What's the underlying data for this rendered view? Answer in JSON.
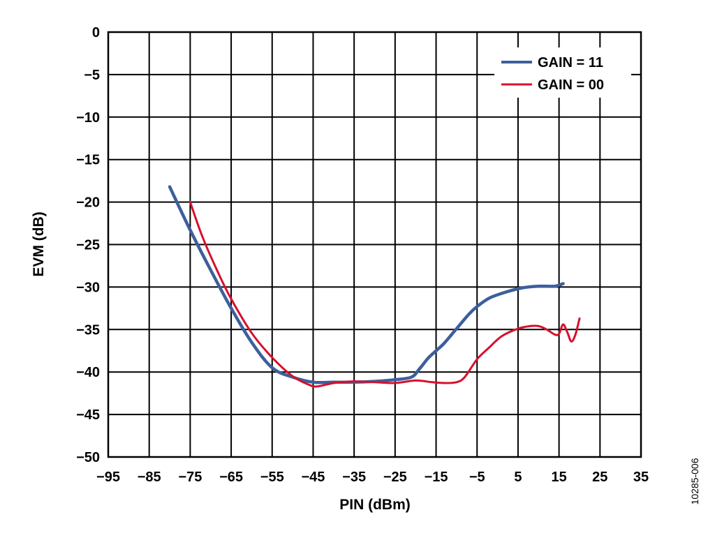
{
  "figure_id": "10285-006",
  "colors": {
    "gain11": "#3d5f9b",
    "gain00": "#d6102c",
    "grid": "#000000"
  },
  "chart_data": {
    "type": "line",
    "xlabel": "PIN (dBm)",
    "ylabel": "EVM (dB)",
    "xlim": [
      -95,
      35
    ],
    "ylim": [
      -50,
      0
    ],
    "xticks": [
      -95,
      -85,
      -75,
      -65,
      -55,
      -45,
      -35,
      -25,
      -15,
      -5,
      5,
      15,
      25,
      35
    ],
    "yticks": [
      0,
      -5,
      -10,
      -15,
      -20,
      -25,
      -30,
      -35,
      -40,
      -45,
      -50
    ],
    "xtick_labels": [
      "−95",
      "−85",
      "−75",
      "−65",
      "−55",
      "−45",
      "−35",
      "−25",
      "−15",
      "−5",
      "5",
      "15",
      "25",
      "35"
    ],
    "ytick_labels": [
      "0",
      "−5",
      "−10",
      "−15",
      "−20",
      "−25",
      "−30",
      "−35",
      "−40",
      "−45",
      "−50"
    ],
    "grid": true,
    "legend_position": "top-right",
    "series": [
      {
        "name": "GAIN = 11",
        "color": "#3d5f9b",
        "x": [
          -80,
          -75,
          -70,
          -65,
          -60,
          -55,
          -50,
          -45,
          -40,
          -35,
          -30,
          -25,
          -21,
          -19,
          -17,
          -15,
          -13,
          -10,
          -7,
          -5,
          -2,
          2,
          6,
          10,
          14,
          16
        ],
        "y": [
          -18.2,
          -23.3,
          -28.0,
          -32.5,
          -36.5,
          -39.5,
          -40.6,
          -41.2,
          -41.2,
          -41.2,
          -41.1,
          -40.9,
          -40.6,
          -39.6,
          -38.4,
          -37.5,
          -36.6,
          -34.9,
          -33.2,
          -32.3,
          -31.3,
          -30.6,
          -30.1,
          -29.9,
          -29.9,
          -29.6
        ]
      },
      {
        "name": "GAIN = 00",
        "color": "#d6102c",
        "x": [
          -75,
          -72,
          -68,
          -65,
          -60,
          -55,
          -50,
          -46,
          -44,
          -40,
          -35,
          -30,
          -25,
          -20,
          -16,
          -13,
          -10,
          -8,
          -5,
          -2,
          1,
          5,
          8,
          10,
          12,
          14,
          15,
          16,
          17,
          18,
          19,
          20
        ],
        "y": [
          -20.0,
          -24.1,
          -28.5,
          -31.4,
          -35.4,
          -38.3,
          -40.5,
          -41.5,
          -41.7,
          -41.3,
          -41.1,
          -41.2,
          -41.3,
          -41.0,
          -41.2,
          -41.3,
          -41.2,
          -40.6,
          -38.5,
          -37.1,
          -35.8,
          -34.9,
          -34.6,
          -34.6,
          -35.0,
          -35.6,
          -35.5,
          -34.4,
          -35.3,
          -36.4,
          -35.6,
          -33.7
        ]
      }
    ]
  }
}
